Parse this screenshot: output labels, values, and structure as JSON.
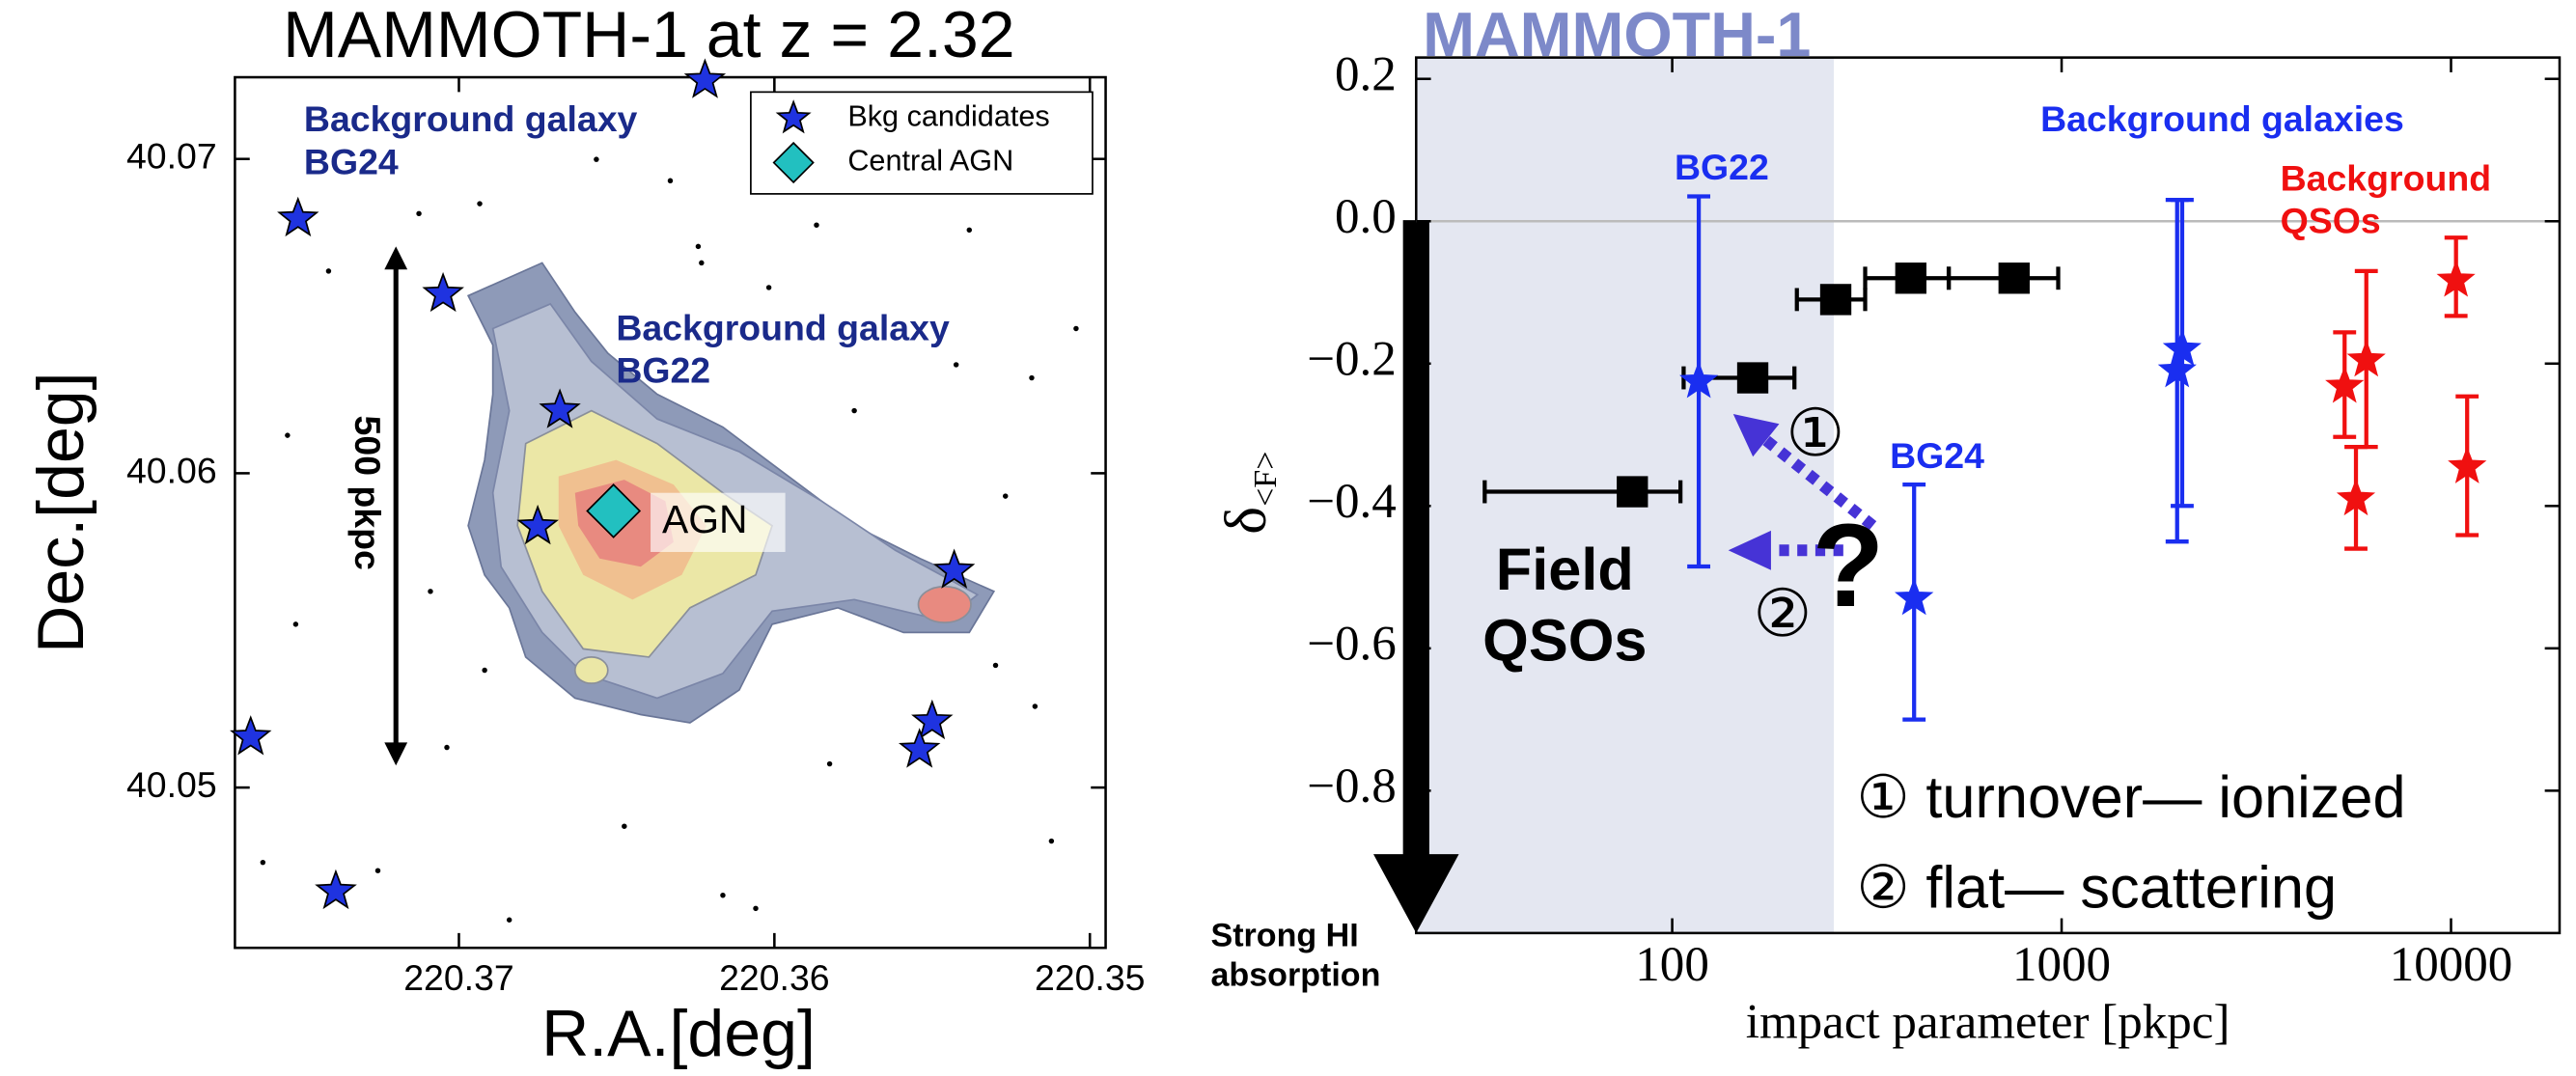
{
  "chart_data": [
    {
      "type": "scatter",
      "title": "MAMMOTH-1 at z = 2.32",
      "xlabel": "R.A.[deg]",
      "ylabel": "Dec.[deg]",
      "xlim": [
        220.3771,
        220.3495
      ],
      "ylim": [
        40.0449,
        40.0726
      ],
      "xticks": [
        220.37,
        220.36,
        220.35
      ],
      "yticks": [
        40.05,
        40.06,
        40.07
      ],
      "legend": "upper right",
      "series": [
        {
          "name": "Bkg candidates",
          "color": "#1f33e0",
          "marker": "star",
          "x": [
            220.3751,
            220.3705,
            220.3668,
            220.3675,
            220.3543,
            220.355,
            220.3554,
            220.3766,
            220.3739,
            220.3622
          ],
          "y": [
            40.0681,
            40.0657,
            40.062,
            40.0583,
            40.0569,
            40.0521,
            40.0512,
            40.0516,
            40.0467,
            40.0725
          ]
        },
        {
          "name": "Central AGN",
          "color": "#22c0c0",
          "marker": "diamond",
          "x": [
            220.3651
          ],
          "y": [
            40.0588
          ]
        }
      ],
      "annotations": [
        "Background galaxy BG24",
        "Background galaxy BG22",
        "AGN",
        "500 pkpc"
      ]
    },
    {
      "type": "scatter",
      "title": "MAMMOTH-1",
      "xlabel": "impact parameter [pkpc]",
      "ylabel": "δ",
      "ylabel_subscript": "<F>",
      "xscale": "log",
      "xlim": [
        22,
        19000
      ],
      "ylim": [
        -1.0,
        0.23
      ],
      "xticks": [
        100,
        1000,
        10000
      ],
      "yticks": [
        {
          "value": 0.2,
          "label": "0.2"
        },
        {
          "value": 0,
          "label": "0.0"
        },
        {
          "value": -0.2,
          "label": "−0.2"
        },
        {
          "value": -0.4,
          "label": "−0.4"
        },
        {
          "value": -0.6,
          "label": "−0.6"
        },
        {
          "value": -0.8,
          "label": "−0.8"
        }
      ],
      "hline": 0,
      "shaded_xlim": [
        22,
        260
      ],
      "series": [
        {
          "name": "Field QSOs",
          "color": "#000000",
          "marker": "square",
          "x": [
            79,
            161,
            263,
            410,
            755
          ],
          "y": [
            -0.38,
            -0.22,
            -0.11,
            -0.08,
            -0.08
          ],
          "x_low": [
            33,
            107,
            209,
            313,
            513
          ],
          "x_high": [
            105,
            206,
            313,
            513,
            980
          ]
        },
        {
          "name": "Background galaxies",
          "color": "#1a2ef0",
          "marker": "star",
          "x": [
            117,
            418,
            1980,
            2040
          ],
          "y": [
            -0.225,
            -0.53,
            -0.21,
            -0.18
          ],
          "y_low": [
            -0.485,
            -0.7,
            -0.45,
            -0.4
          ],
          "y_high": [
            0.035,
            -0.37,
            0.03,
            0.03
          ],
          "point_labels": [
            "BG22",
            "BG24",
            null,
            null
          ]
        },
        {
          "name": "Background QSOs",
          "color": "#f01010",
          "marker": "star",
          "x": [
            5330,
            6060,
            5700,
            10300,
            11000
          ],
          "y": [
            -0.232,
            -0.195,
            -0.39,
            -0.083,
            -0.345
          ],
          "y_low": [
            -0.303,
            -0.317,
            -0.46,
            -0.133,
            -0.441
          ],
          "y_high": [
            -0.156,
            -0.07,
            -0.317,
            -0.023,
            -0.246
          ]
        }
      ],
      "annotations": [
        "Strong HI absorption",
        "①",
        "②",
        "?",
        "① turnover— ionized",
        "② flat— scattering"
      ]
    }
  ]
}
